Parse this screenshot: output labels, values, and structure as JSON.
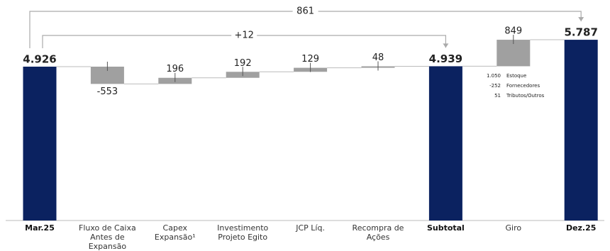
{
  "chart_data": {
    "type": "waterfall",
    "categories": [
      "Mar.25",
      "Fluxo de Caixa Antes de Expansão",
      "Capex Expansão¹",
      "Investimento Projeto Egito",
      "JCP Líq.",
      "Recompra de Ações",
      "Subtotal",
      "Giro",
      "Dez.25"
    ],
    "values": [
      4926,
      -553,
      196,
      192,
      129,
      48,
      4939,
      849,
      5787
    ],
    "value_labels": [
      "4.926",
      "-553",
      "196",
      "192",
      "129",
      "48",
      "4.939",
      "849",
      "5.787"
    ],
    "kinds": [
      "total",
      "delta",
      "delta",
      "delta",
      "delta",
      "delta",
      "total",
      "delta",
      "total"
    ],
    "colors": {
      "total": "#0b2260",
      "delta": "#a0a0a0"
    },
    "annotations": [
      "861",
      "+12"
    ],
    "breakdown": [
      {
        "amount": "1.050",
        "label": "Estoque"
      },
      {
        "amount": "-252",
        "label": "Fornecedores"
      },
      {
        "amount": "51",
        "label": "Tributos/Outros"
      }
    ]
  }
}
